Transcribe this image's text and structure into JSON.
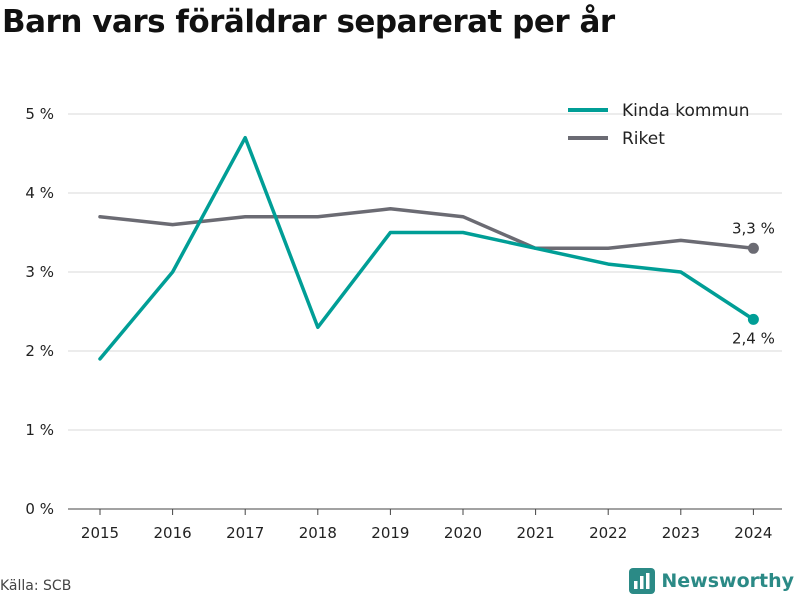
{
  "title": "Barn vars föräldrar separerat per år",
  "source": "Källa: SCB",
  "brand": {
    "name": "Newsworthy",
    "icon": "bar-chart-logo-icon",
    "color": "#2b8a86"
  },
  "chart_data": {
    "type": "line",
    "title": "Barn vars föräldrar separerat per år",
    "xlabel": "",
    "ylabel": "",
    "x": [
      "2015",
      "2016",
      "2017",
      "2018",
      "2019",
      "2020",
      "2021",
      "2022",
      "2023",
      "2024"
    ],
    "ylim": [
      0,
      5
    ],
    "yticks": [
      0,
      1,
      2,
      3,
      4,
      5
    ],
    "ytick_labels": [
      "0 %",
      "1 %",
      "2 %",
      "3 %",
      "4 %",
      "5 %"
    ],
    "grid": "horizontal",
    "legend_position": "top-right",
    "series": [
      {
        "name": "Kinda kommun",
        "color": "#009e96",
        "values": [
          1.9,
          3.0,
          4.7,
          2.3,
          3.5,
          3.5,
          3.3,
          3.1,
          3.0,
          2.4
        ],
        "end_label": "2,4 %"
      },
      {
        "name": "Riket",
        "color": "#6b6b73",
        "values": [
          3.7,
          3.6,
          3.7,
          3.7,
          3.8,
          3.7,
          3.3,
          3.3,
          3.4,
          3.3
        ],
        "end_label": "3,3 %"
      }
    ]
  }
}
